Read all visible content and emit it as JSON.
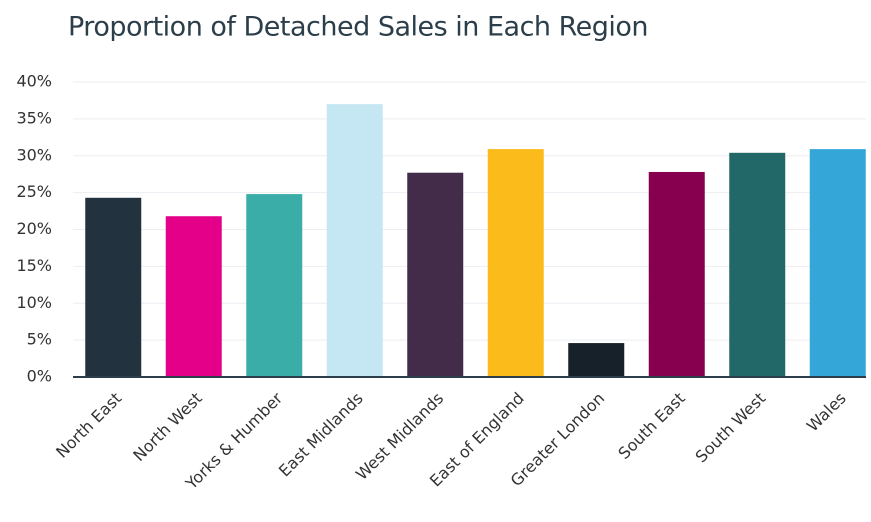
{
  "chart_data": {
    "type": "bar",
    "title": "Proportion of Detached Sales in Each Region",
    "categories": [
      "North East",
      "North West",
      "Yorks & Humber",
      "East Midlands",
      "West Midlands",
      "East of England",
      "Greater London",
      "South East",
      "South West",
      "Wales"
    ],
    "values": [
      24.3,
      21.8,
      24.8,
      37.0,
      27.7,
      30.9,
      4.6,
      27.8,
      30.4,
      30.9
    ],
    "colors": [
      "#22333f",
      "#e5008a",
      "#3aada9",
      "#c5e6f3",
      "#432c4a",
      "#fbbb1b",
      "#17212a",
      "#87004f",
      "#236868",
      "#34a6d7"
    ],
    "ylim": [
      0,
      40
    ],
    "yticks": [
      {
        "value": 0,
        "label": "0%"
      },
      {
        "value": 5,
        "label": "5%"
      },
      {
        "value": 10,
        "label": "10%"
      },
      {
        "value": 15,
        "label": "15%"
      },
      {
        "value": 20,
        "label": "20%"
      },
      {
        "value": 25,
        "label": "25%"
      },
      {
        "value": 30,
        "label": "30%"
      },
      {
        "value": 35,
        "label": "35%"
      },
      {
        "value": 40,
        "label": "40%"
      }
    ],
    "grid": true
  }
}
